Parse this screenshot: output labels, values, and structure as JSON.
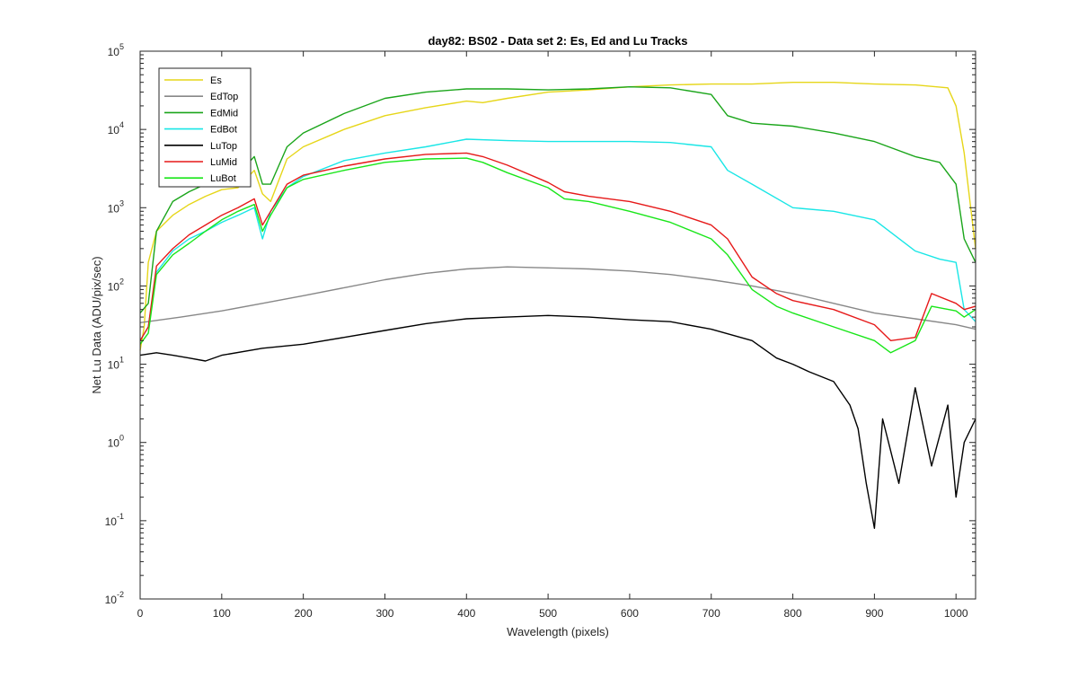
{
  "chart_data": {
    "type": "line",
    "title": "day82: BS02 - Data set 2: Es, Ed and Lu Tracks",
    "xlabel": "Wavelength (pixels)",
    "ylabel": "Net Lu Data (ADU/pix/sec)",
    "xlim": [
      0,
      1024
    ],
    "ylim": [
      0.01,
      100000
    ],
    "yscale": "log",
    "grid": false,
    "legend_location": "top-left",
    "x_ticks": [
      0,
      100,
      200,
      300,
      400,
      500,
      600,
      700,
      800,
      900,
      1000
    ],
    "y_ticks": [
      {
        "value": 0.01,
        "base": "10",
        "exp": "-2"
      },
      {
        "value": 0.1,
        "base": "10",
        "exp": "-1"
      },
      {
        "value": 1,
        "base": "10",
        "exp": "0"
      },
      {
        "value": 10,
        "base": "10",
        "exp": "1"
      },
      {
        "value": 100,
        "base": "10",
        "exp": "2"
      },
      {
        "value": 1000,
        "base": "10",
        "exp": "3"
      },
      {
        "value": 10000,
        "base": "10",
        "exp": "4"
      },
      {
        "value": 100000,
        "base": "10",
        "exp": "5"
      }
    ],
    "series": [
      {
        "name": "Es",
        "color": "#e6d619",
        "x": [
          0,
          5,
          10,
          20,
          40,
          60,
          80,
          100,
          120,
          140,
          150,
          160,
          180,
          200,
          250,
          300,
          350,
          400,
          420,
          450,
          500,
          550,
          600,
          650,
          700,
          750,
          800,
          850,
          900,
          950,
          990,
          1000,
          1010,
          1024
        ],
        "y": [
          15,
          30,
          200,
          500,
          800,
          1100,
          1400,
          1700,
          1800,
          3000,
          1500,
          1200,
          4200,
          6000,
          10000,
          15000,
          19000,
          23000,
          22000,
          25000,
          30000,
          32000,
          35000,
          37000,
          38000,
          38000,
          40000,
          40000,
          38000,
          37000,
          34000,
          20000,
          5000,
          300
        ]
      },
      {
        "name": "EdTop",
        "color": "#888888",
        "x": [
          0,
          50,
          100,
          150,
          200,
          250,
          300,
          350,
          400,
          450,
          500,
          550,
          600,
          650,
          700,
          750,
          800,
          850,
          900,
          950,
          1000,
          1024
        ],
        "y": [
          34,
          40,
          48,
          60,
          75,
          95,
          120,
          145,
          165,
          175,
          170,
          165,
          155,
          140,
          120,
          100,
          80,
          60,
          45,
          38,
          32,
          28
        ]
      },
      {
        "name": "EdMid",
        "color": "#1aa51a",
        "x": [
          0,
          10,
          20,
          40,
          60,
          80,
          100,
          120,
          140,
          150,
          160,
          180,
          200,
          250,
          300,
          350,
          400,
          450,
          500,
          550,
          600,
          650,
          700,
          720,
          750,
          800,
          850,
          900,
          950,
          980,
          1000,
          1010,
          1024
        ],
        "y": [
          45,
          60,
          500,
          1200,
          1600,
          2000,
          2500,
          2700,
          4500,
          2000,
          2000,
          6000,
          9000,
          16000,
          25000,
          30000,
          33000,
          33000,
          32000,
          33000,
          35000,
          34000,
          28000,
          15000,
          12000,
          11000,
          9000,
          7000,
          4500,
          3800,
          2000,
          400,
          200
        ]
      },
      {
        "name": "EdBot",
        "color": "#19e6e6",
        "x": [
          0,
          10,
          20,
          40,
          60,
          80,
          100,
          120,
          140,
          150,
          160,
          180,
          200,
          250,
          300,
          350,
          400,
          450,
          500,
          550,
          600,
          650,
          700,
          720,
          750,
          800,
          850,
          900,
          950,
          980,
          1000,
          1010,
          1024
        ],
        "y": [
          20,
          30,
          150,
          280,
          400,
          500,
          650,
          800,
          1000,
          400,
          900,
          1800,
          2500,
          4000,
          5000,
          6000,
          7500,
          7200,
          7000,
          7000,
          7000,
          6800,
          6000,
          3000,
          2000,
          1000,
          900,
          700,
          280,
          220,
          200,
          50,
          35
        ]
      },
      {
        "name": "LuTop",
        "color": "#000000",
        "x": [
          0,
          20,
          40,
          60,
          80,
          100,
          150,
          200,
          250,
          300,
          350,
          400,
          450,
          500,
          550,
          600,
          650,
          700,
          750,
          780,
          800,
          820,
          850,
          870,
          880,
          890,
          900,
          910,
          930,
          950,
          970,
          990,
          1000,
          1010,
          1024
        ],
        "y": [
          13,
          14,
          13,
          12,
          11,
          13,
          16,
          18,
          22,
          27,
          33,
          38,
          40,
          42,
          40,
          37,
          35,
          28,
          20,
          12,
          10,
          8,
          6,
          3,
          1.5,
          0.3,
          0.08,
          2,
          0.3,
          5,
          0.5,
          3,
          0.2,
          1,
          2
        ]
      },
      {
        "name": "LuMid",
        "color": "#e61919",
        "x": [
          0,
          10,
          20,
          40,
          60,
          80,
          100,
          120,
          140,
          150,
          160,
          180,
          200,
          250,
          300,
          350,
          400,
          420,
          450,
          500,
          520,
          550,
          600,
          650,
          700,
          720,
          750,
          780,
          800,
          850,
          900,
          920,
          950,
          970,
          1000,
          1010,
          1024
        ],
        "y": [
          20,
          30,
          180,
          300,
          450,
          600,
          800,
          1000,
          1300,
          600,
          900,
          2000,
          2600,
          3400,
          4200,
          4800,
          5000,
          4500,
          3500,
          2100,
          1600,
          1400,
          1200,
          900,
          600,
          400,
          130,
          80,
          65,
          50,
          32,
          20,
          22,
          80,
          60,
          50,
          55
        ]
      },
      {
        "name": "LuBot",
        "color": "#19e619",
        "x": [
          0,
          10,
          20,
          40,
          60,
          80,
          100,
          120,
          140,
          150,
          160,
          180,
          200,
          250,
          300,
          350,
          400,
          420,
          450,
          500,
          520,
          550,
          600,
          650,
          700,
          720,
          750,
          780,
          800,
          850,
          900,
          920,
          950,
          970,
          1000,
          1010,
          1024
        ],
        "y": [
          18,
          25,
          140,
          250,
          350,
          500,
          700,
          900,
          1100,
          500,
          800,
          1800,
          2300,
          3000,
          3800,
          4200,
          4300,
          3800,
          2800,
          1800,
          1300,
          1200,
          900,
          650,
          400,
          250,
          90,
          55,
          45,
          30,
          20,
          14,
          20,
          55,
          48,
          40,
          50
        ]
      }
    ]
  }
}
